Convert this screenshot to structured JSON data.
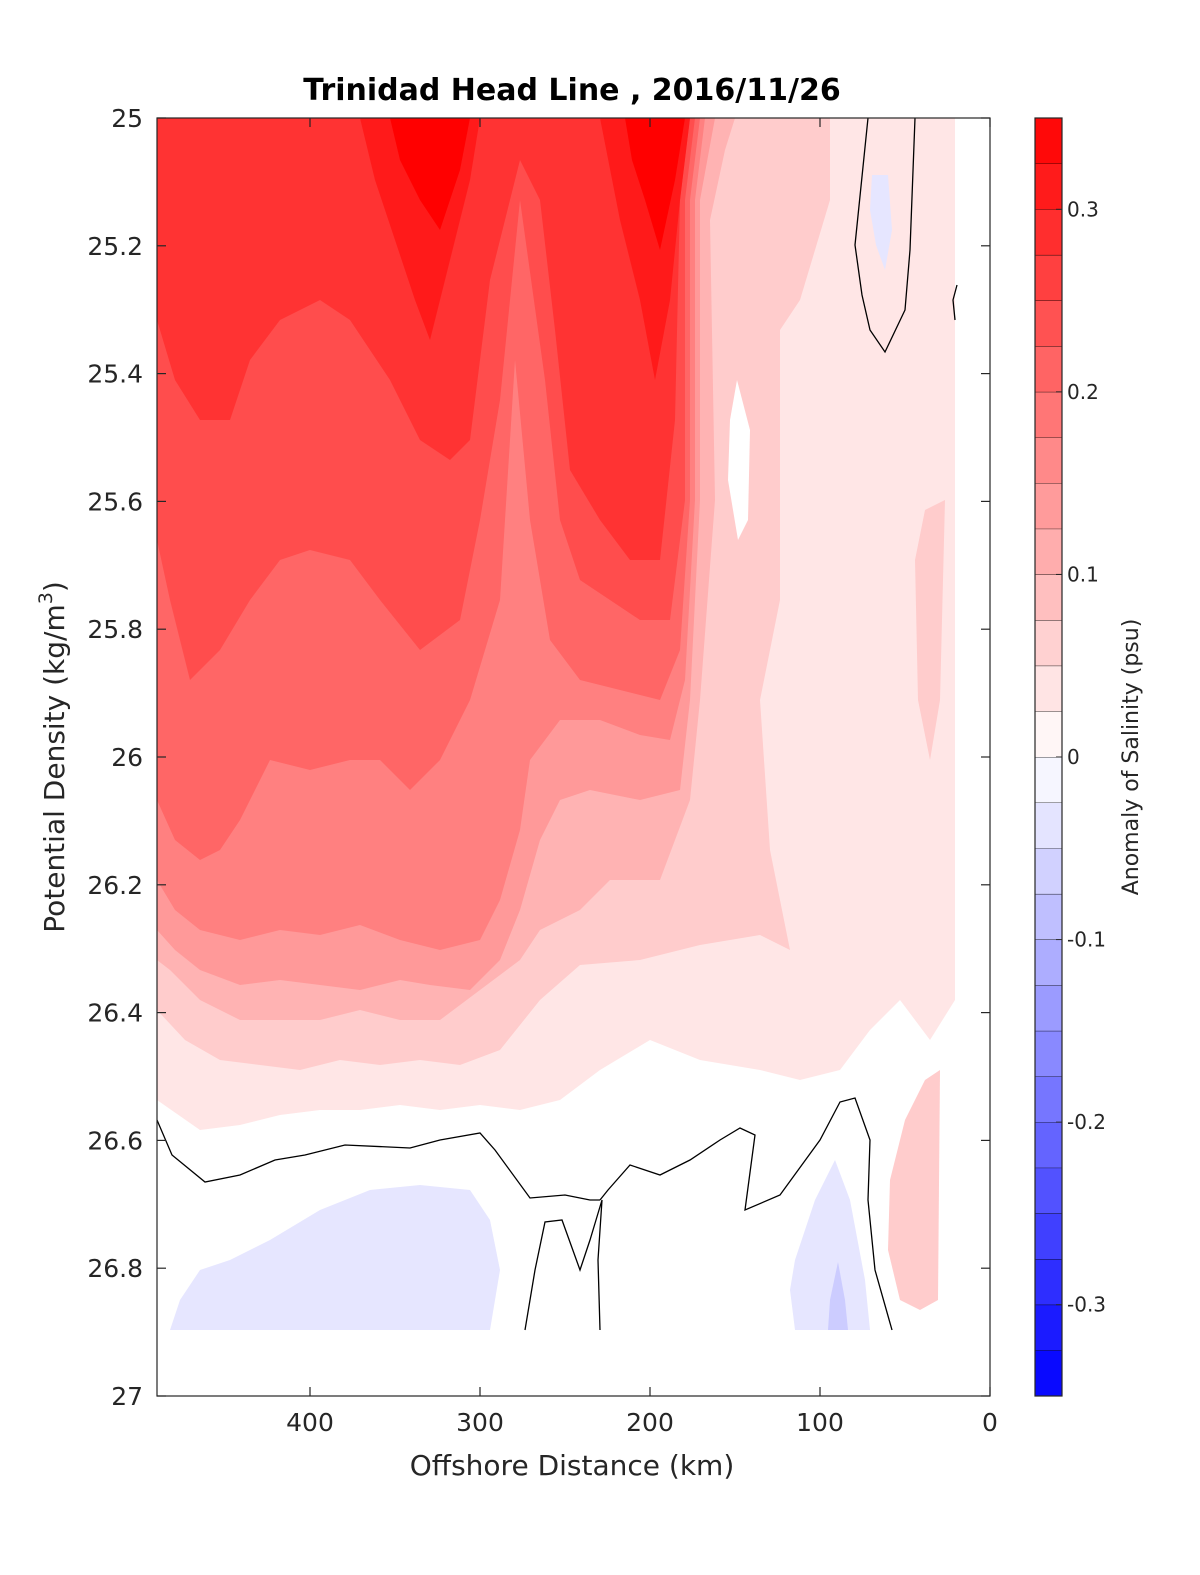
{
  "chart_data": {
    "type": "contourf",
    "title": "Trinidad Head Line , 2016/11/26",
    "xlabel": "Offshore Distance (km)",
    "ylabel_main": "Potential Density (kg/m",
    "ylabel_sup": "3",
    "ylabel_close": ")",
    "xlim": [
      490,
      0
    ],
    "ylim": [
      25,
      27
    ],
    "y_reversed": true,
    "xticks": [
      400,
      300,
      200,
      100,
      0
    ],
    "xtick_labels": [
      "400",
      "300",
      "200",
      "100",
      "0"
    ],
    "yticks": [
      25,
      25.2,
      25.4,
      25.6,
      25.8,
      26,
      26.2,
      26.4,
      26.6,
      26.8,
      27
    ],
    "ytick_labels": [
      "25",
      "25.2",
      "25.4",
      "25.6",
      "25.8",
      "26",
      "26.2",
      "26.4",
      "26.6",
      "26.8",
      "27"
    ],
    "colorbar": {
      "label": "Anomaly of Salinity (psu)",
      "range": [
        -0.35,
        0.35
      ],
      "levels": [
        -0.35,
        -0.325,
        -0.3,
        -0.275,
        -0.25,
        -0.225,
        -0.2,
        -0.175,
        -0.15,
        -0.125,
        -0.1,
        -0.075,
        -0.05,
        -0.025,
        0,
        0.025,
        0.05,
        0.075,
        0.1,
        0.125,
        0.15,
        0.175,
        0.2,
        0.225,
        0.25,
        0.275,
        0.3,
        0.325,
        0.35
      ],
      "ticks": [
        0.3,
        0.2,
        0.1,
        0,
        -0.1,
        -0.2,
        -0.3
      ],
      "tick_labels": [
        "0.3",
        "0.2",
        "0.1",
        "0",
        "-0.1",
        "-0.2",
        "-0.3"
      ],
      "color_max": "#ff0000",
      "color_mid": "#ffffff",
      "color_min": "#0000ff"
    },
    "zero_contour": "black line",
    "anomaly_field": [
      {
        "x": 490,
        "y": 25.0,
        "v": 0.28
      },
      {
        "x": 450,
        "y": 25.0,
        "v": 0.29
      },
      {
        "x": 400,
        "y": 25.0,
        "v": 0.3
      },
      {
        "x": 350,
        "y": 25.0,
        "v": 0.34
      },
      {
        "x": 300,
        "y": 25.0,
        "v": 0.32
      },
      {
        "x": 260,
        "y": 25.0,
        "v": 0.24
      },
      {
        "x": 200,
        "y": 25.0,
        "v": 0.34
      },
      {
        "x": 175,
        "y": 25.0,
        "v": 0.2
      },
      {
        "x": 150,
        "y": 25.0,
        "v": 0.06
      },
      {
        "x": 100,
        "y": 25.0,
        "v": 0.07
      },
      {
        "x": 60,
        "y": 25.0,
        "v": -0.02
      },
      {
        "x": 20,
        "y": 25.0,
        "v": 0.0
      },
      {
        "x": 490,
        "y": 25.4,
        "v": 0.27
      },
      {
        "x": 450,
        "y": 25.4,
        "v": 0.27
      },
      {
        "x": 400,
        "y": 25.4,
        "v": 0.24
      },
      {
        "x": 350,
        "y": 25.4,
        "v": 0.3
      },
      {
        "x": 300,
        "y": 25.4,
        "v": 0.26
      },
      {
        "x": 260,
        "y": 25.4,
        "v": 0.22
      },
      {
        "x": 200,
        "y": 25.4,
        "v": 0.33
      },
      {
        "x": 175,
        "y": 25.4,
        "v": 0.18
      },
      {
        "x": 150,
        "y": 25.4,
        "v": 0.01
      },
      {
        "x": 100,
        "y": 25.4,
        "v": 0.05
      },
      {
        "x": 60,
        "y": 25.4,
        "v": 0.01
      },
      {
        "x": 20,
        "y": 25.4,
        "v": 0.04
      },
      {
        "x": 490,
        "y": 25.8,
        "v": 0.25
      },
      {
        "x": 450,
        "y": 25.8,
        "v": 0.24
      },
      {
        "x": 400,
        "y": 25.8,
        "v": 0.2
      },
      {
        "x": 350,
        "y": 25.8,
        "v": 0.22
      },
      {
        "x": 300,
        "y": 25.8,
        "v": 0.21
      },
      {
        "x": 260,
        "y": 25.8,
        "v": 0.14
      },
      {
        "x": 200,
        "y": 25.8,
        "v": 0.22
      },
      {
        "x": 175,
        "y": 25.8,
        "v": 0.12
      },
      {
        "x": 150,
        "y": 25.8,
        "v": 0.05
      },
      {
        "x": 100,
        "y": 25.8,
        "v": 0.05
      },
      {
        "x": 60,
        "y": 25.8,
        "v": 0.04
      },
      {
        "x": 20,
        "y": 25.8,
        "v": 0.05
      },
      {
        "x": 490,
        "y": 26.2,
        "v": 0.22
      },
      {
        "x": 450,
        "y": 26.2,
        "v": 0.2
      },
      {
        "x": 400,
        "y": 26.2,
        "v": 0.18
      },
      {
        "x": 350,
        "y": 26.2,
        "v": 0.19
      },
      {
        "x": 300,
        "y": 26.2,
        "v": 0.15
      },
      {
        "x": 260,
        "y": 26.2,
        "v": 0.09
      },
      {
        "x": 200,
        "y": 26.2,
        "v": 0.08
      },
      {
        "x": 150,
        "y": 26.2,
        "v": 0.05
      },
      {
        "x": 100,
        "y": 26.2,
        "v": 0.04
      },
      {
        "x": 60,
        "y": 26.2,
        "v": 0.02
      },
      {
        "x": 20,
        "y": 26.2,
        "v": 0.04
      },
      {
        "x": 490,
        "y": 26.5,
        "v": 0.06
      },
      {
        "x": 400,
        "y": 26.5,
        "v": 0.05
      },
      {
        "x": 300,
        "y": 26.5,
        "v": 0.05
      },
      {
        "x": 200,
        "y": 26.5,
        "v": 0.02
      },
      {
        "x": 100,
        "y": 26.5,
        "v": 0.01
      },
      {
        "x": 30,
        "y": 26.5,
        "v": 0.06
      },
      {
        "x": 450,
        "y": 26.8,
        "v": -0.03
      },
      {
        "x": 350,
        "y": 26.8,
        "v": -0.04
      },
      {
        "x": 250,
        "y": 26.8,
        "v": 0.0
      },
      {
        "x": 150,
        "y": 26.8,
        "v": 0.0
      },
      {
        "x": 90,
        "y": 26.8,
        "v": -0.06
      },
      {
        "x": 40,
        "y": 26.8,
        "v": 0.06
      }
    ]
  }
}
